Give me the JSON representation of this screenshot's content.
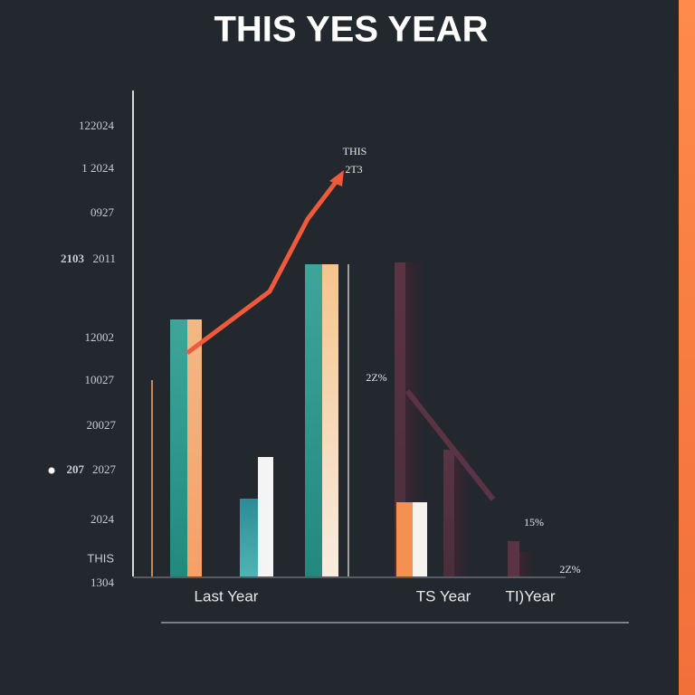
{
  "title": "THIS  YES YEAR",
  "y_labels": [
    "122024",
    "1 2024",
    "0927",
    "2103",
    "2011",
    "12002",
    "10027",
    "20027",
    "207",
    "2027",
    "2024",
    "THIS",
    "1304"
  ],
  "annotations": [
    "THIS",
    "2T3",
    "2Z%",
    "15%",
    "2Z%"
  ],
  "x_labels": [
    "Last Year",
    "TS  Year",
    "TI)Year"
  ]
}
